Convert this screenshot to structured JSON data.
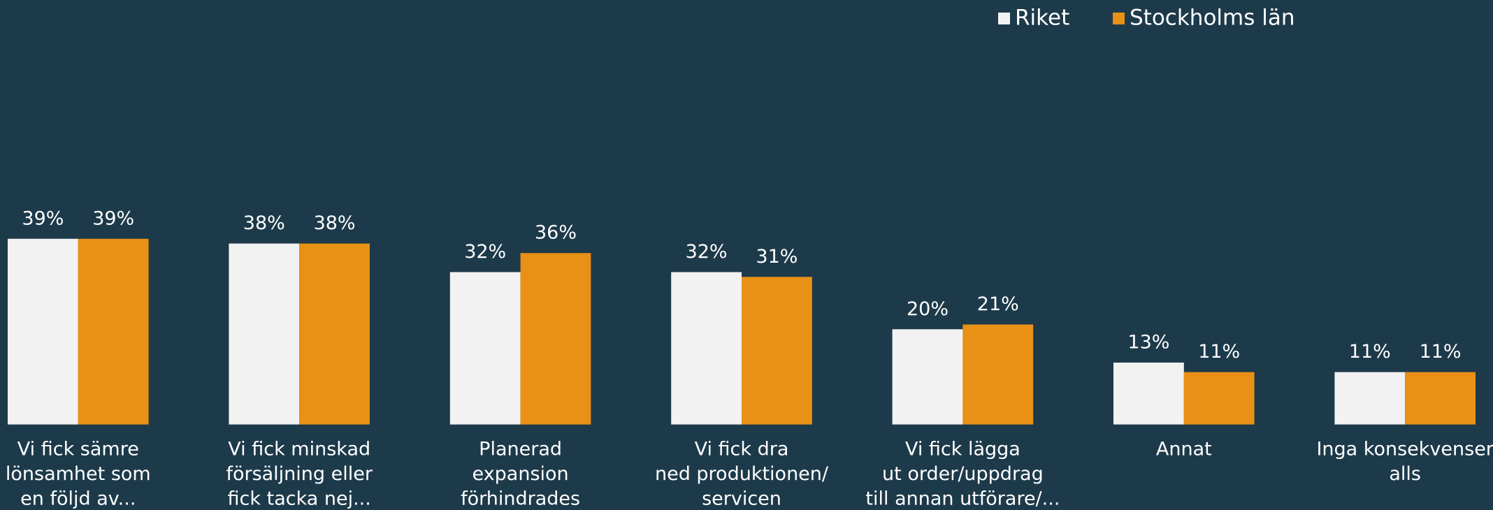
{
  "chart_data": {
    "type": "bar",
    "categories": [
      [
        "Vi fick sämre",
        "lönsamhet som",
        "en följd av..."
      ],
      [
        "Vi fick minskad",
        "försäljning eller",
        "fick tacka nej..."
      ],
      [
        "Planerad",
        "expansion",
        "förhindrades"
      ],
      [
        "Vi fick dra",
        "ned produktionen/",
        "servicen"
      ],
      [
        "Vi fick lägga",
        "ut order/uppdrag",
        "till annan utförare/..."
      ],
      [
        "Annat"
      ],
      [
        "Inga konsekvenser",
        "alls"
      ]
    ],
    "series": [
      {
        "name": "Riket",
        "color": "#f2f2f2",
        "values": [
          39,
          38,
          32,
          32,
          20,
          13,
          11
        ],
        "value_labels": [
          "39%",
          "38%",
          "32%",
          "32%",
          "20%",
          "13%",
          "11%"
        ]
      },
      {
        "name": "Stockholms län",
        "color": "#e89116",
        "values": [
          39,
          38,
          36,
          31,
          21,
          11,
          11
        ],
        "value_labels": [
          "39%",
          "38%",
          "36%",
          "31%",
          "21%",
          "11%",
          "11%"
        ]
      }
    ],
    "ylim": [
      0,
      89
    ],
    "legend": "top-right"
  }
}
